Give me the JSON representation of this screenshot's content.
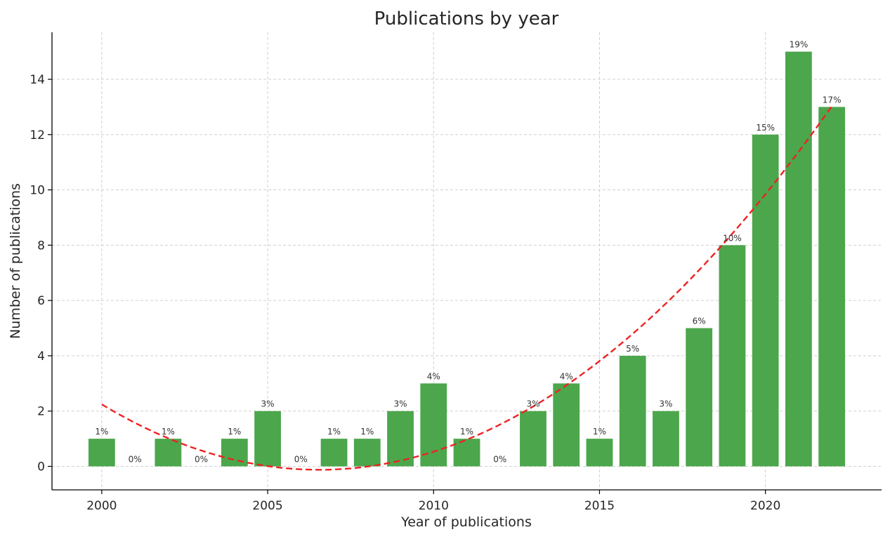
{
  "chart_data": {
    "type": "bar",
    "title": "Publications by year",
    "xlabel": "Year of publications",
    "ylabel": "Number of publications",
    "x": [
      2000,
      2001,
      2002,
      2003,
      2004,
      2005,
      2006,
      2007,
      2008,
      2009,
      2010,
      2011,
      2012,
      2013,
      2014,
      2015,
      2016,
      2017,
      2018,
      2019,
      2020,
      2021,
      2022
    ],
    "values": [
      1,
      0,
      1,
      0,
      1,
      2,
      0,
      1,
      1,
      2,
      3,
      1,
      0,
      2,
      3,
      1,
      4,
      2,
      5,
      8,
      12,
      15,
      13
    ],
    "percent_labels": [
      "1%",
      "0%",
      "1%",
      "0%",
      "1%",
      "3%",
      "0%",
      "1%",
      "1%",
      "3%",
      "4%",
      "1%",
      "0%",
      "3%",
      "4%",
      "1%",
      "5%",
      "3%",
      "6%",
      "10%",
      "15%",
      "19%",
      "17%"
    ],
    "x_ticks": [
      "2000",
      "2005",
      "2010",
      "2015",
      "2020"
    ],
    "y_ticks": [
      "0",
      "2",
      "4",
      "6",
      "8",
      "10",
      "12",
      "14"
    ],
    "xlim": [
      1998.5,
      2023.5
    ],
    "ylim": [
      -0.85,
      15.7
    ],
    "grid": true,
    "bar_color": "#4ca64c",
    "trend": {
      "style": "dashed",
      "color": "#ee2222",
      "kind": "quadratic fit",
      "x": [
        2000,
        2022
      ]
    }
  }
}
